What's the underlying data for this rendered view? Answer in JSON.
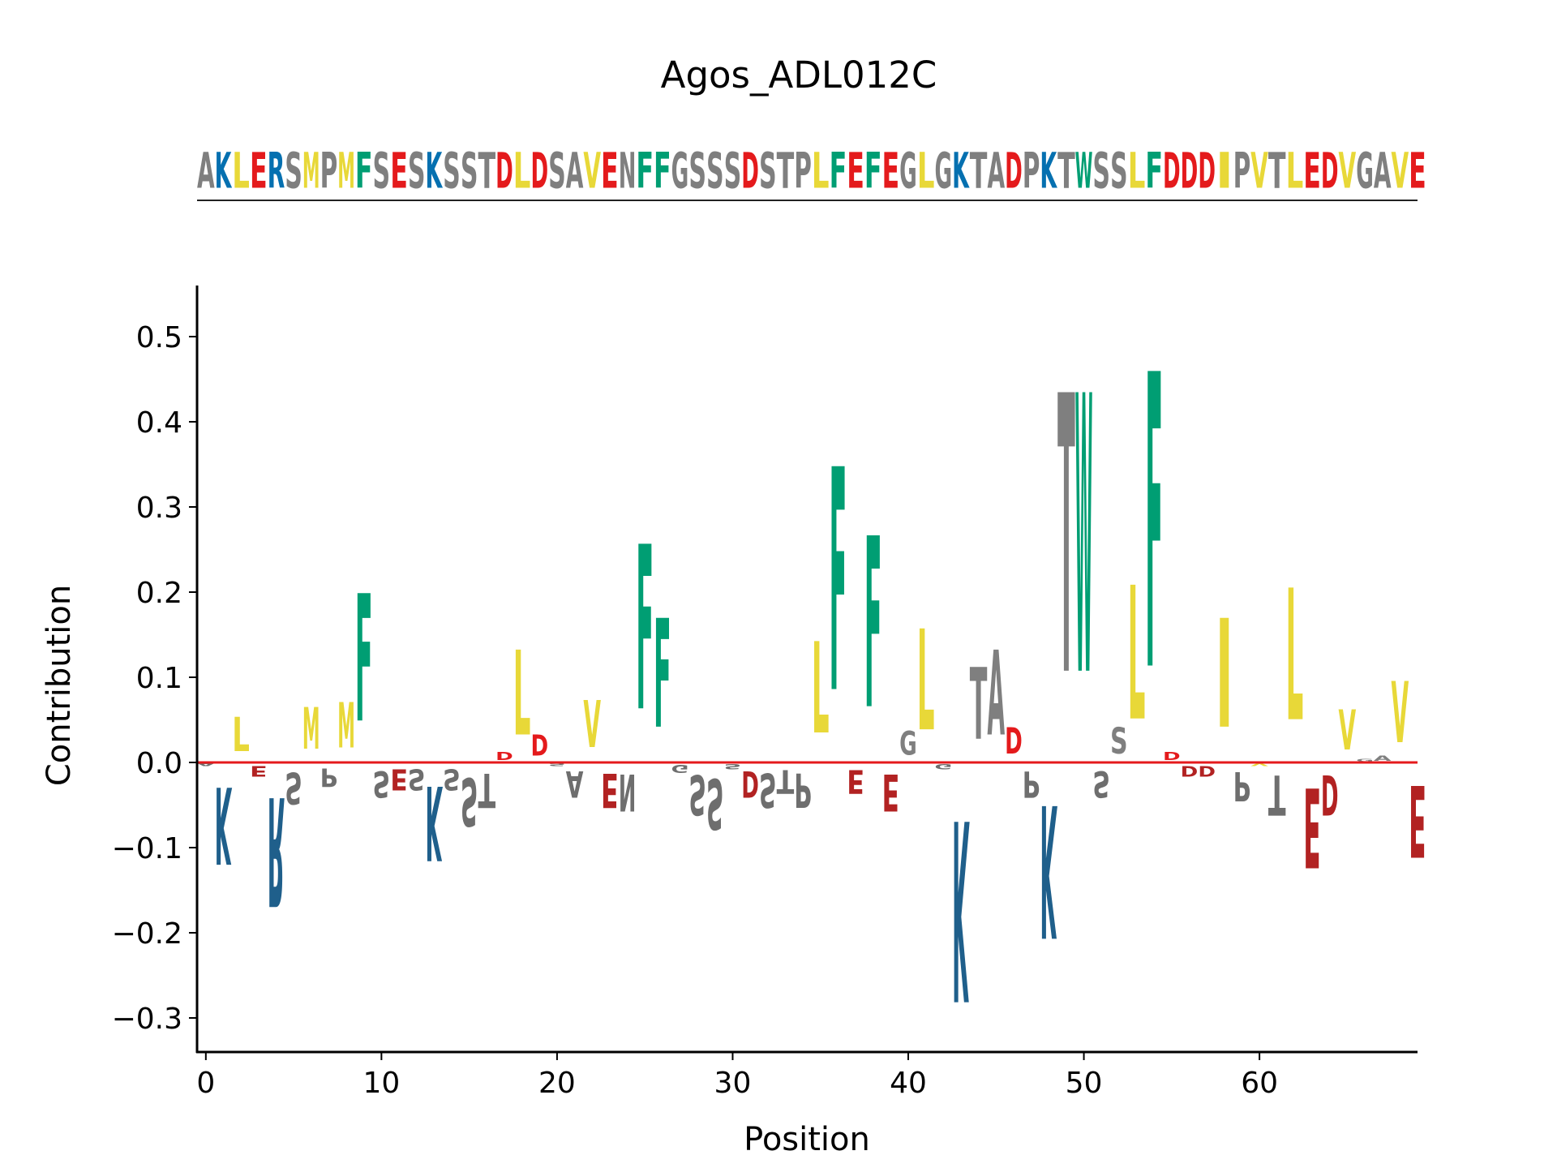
{
  "chart_data": {
    "type": "bar",
    "title": "Agos_ADL012C",
    "xlabel": "Position",
    "ylabel": "Contribution",
    "xlim": [
      -0.5,
      69
    ],
    "ylim": [
      -0.34,
      0.56
    ],
    "xticks": [
      0,
      10,
      20,
      30,
      40,
      50,
      60
    ],
    "yticks": [
      -0.3,
      -0.2,
      -0.1,
      0.0,
      0.1,
      0.2,
      0.3,
      0.4,
      0.5
    ],
    "ytick_labels": [
      "−0.3",
      "−0.2",
      "−0.1",
      "0.0",
      "0.1",
      "0.2",
      "0.3",
      "0.4",
      "0.5"
    ],
    "sequence": "AKLERSMPMFSESKSSTDLDSAVENFFGSSSDSTPLFEFEGLGKTADPKTWSSLFDDDIPVTLEDVGAVE",
    "values": [
      -0.005,
      -0.145,
      0.065,
      -0.02,
      -0.205,
      -0.06,
      0.078,
      -0.035,
      0.085,
      0.24,
      -0.05,
      -0.04,
      -0.04,
      -0.14,
      -0.04,
      -0.09,
      -0.065,
      0.015,
      0.16,
      0.04,
      -0.005,
      -0.05,
      0.088,
      -0.065,
      -0.07,
      0.31,
      0.205,
      -0.015,
      -0.075,
      -0.095,
      -0.01,
      -0.05,
      -0.065,
      -0.045,
      -0.065,
      0.172,
      0.42,
      -0.045,
      0.322,
      -0.07,
      0.045,
      0.19,
      -0.01,
      -0.34,
      0.135,
      0.16,
      0.05,
      -0.05,
      -0.25,
      0.525,
      0.525,
      -0.05,
      0.05,
      0.252,
      0.555,
      0.015,
      -0.02,
      -0.02,
      0.205,
      -0.055,
      -0.005,
      -0.075,
      0.248,
      -0.15,
      -0.075,
      0.075,
      0.005,
      0.01,
      0.115,
      -0.135
    ],
    "colors": {
      "acidic": "#e41a1c",
      "acidic_negative": "#b22222",
      "basic": "#0570b0",
      "basic_negative": "#1f5f8b",
      "hydrophobic": "#e8d838",
      "aromatic": "#009e73",
      "polar": "#7f7f7f",
      "polar_negative": "#6e6e6e",
      "baseline": "#e41a1c"
    }
  }
}
